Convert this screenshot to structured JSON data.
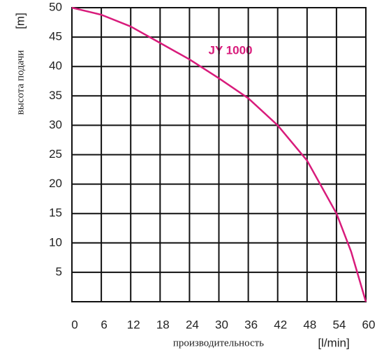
{
  "chart_data": {
    "type": "line",
    "annotation": "JY 1000",
    "xlabel": "производительность",
    "xlabel_unit": "[l/min]",
    "ylabel": "высота подачи",
    "ylabel_unit": "[m]",
    "x": [
      0,
      6,
      12,
      18,
      24,
      30,
      36,
      42,
      48,
      54,
      57,
      60
    ],
    "series": [
      {
        "color": "#d81b7b",
        "values": [
          50,
          48.8,
          46.8,
          44.0,
          41.2,
          38.0,
          34.6,
          30.0,
          24.0,
          15.0,
          8.5,
          0
        ]
      }
    ],
    "xlim": [
      0,
      60
    ],
    "xticks": [
      0,
      6,
      12,
      18,
      24,
      30,
      36,
      42,
      48,
      54,
      60
    ],
    "ylim": [
      0,
      50
    ],
    "yticks": [
      5,
      10,
      15,
      20,
      25,
      30,
      35,
      40,
      45,
      50
    ],
    "grid": true
  }
}
